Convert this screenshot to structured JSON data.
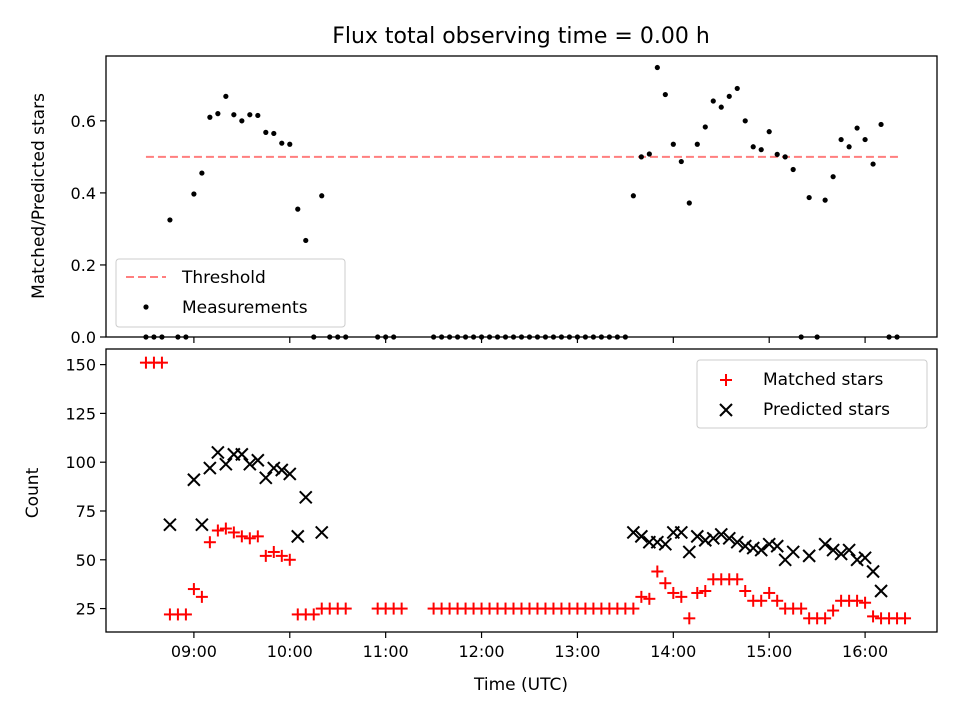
{
  "chart_data": [
    {
      "type": "scatter",
      "title": "Flux total observing time = 0.00 h",
      "xlabel": "",
      "ylabel": "Matched/Predicted stars",
      "xlim": [
        "08:05",
        "16:45"
      ],
      "ylim": [
        0,
        0.78
      ],
      "yticks": [
        0.0,
        0.2,
        0.4,
        0.6
      ],
      "ytick_labels": [
        "0.0",
        "0.2",
        "0.4",
        "0.6"
      ],
      "threshold": {
        "name": "Threshold",
        "y": 0.5,
        "x_start": "08:30",
        "x_end": "16:22",
        "color": "#ff7f7f",
        "style": "dashed"
      },
      "legend": {
        "position": "lower-left",
        "entries": [
          "Threshold",
          "Measurements"
        ]
      },
      "series": [
        {
          "name": "Measurements",
          "color": "#000000",
          "marker": "dot",
          "points": [
            [
              "08:30",
              0
            ],
            [
              "08:35",
              0
            ],
            [
              "08:40",
              0
            ],
            [
              "08:45",
              0.325
            ],
            [
              "08:50",
              0
            ],
            [
              "08:55",
              0
            ],
            [
              "09:00",
              0.397
            ],
            [
              "09:05",
              0.455
            ],
            [
              "09:10",
              0.61
            ],
            [
              "09:15",
              0.62
            ],
            [
              "09:20",
              0.668
            ],
            [
              "09:25",
              0.617
            ],
            [
              "09:30",
              0.6
            ],
            [
              "09:35",
              0.617
            ],
            [
              "09:40",
              0.615
            ],
            [
              "09:45",
              0.568
            ],
            [
              "09:50",
              0.565
            ],
            [
              "09:55",
              0.538
            ],
            [
              "10:00",
              0.535
            ],
            [
              "10:05",
              0.355
            ],
            [
              "10:10",
              0.268
            ],
            [
              "10:15",
              0
            ],
            [
              "10:20",
              0.392
            ],
            [
              "10:25",
              0
            ],
            [
              "10:30",
              0
            ],
            [
              "10:35",
              0
            ],
            [
              "10:55",
              0
            ],
            [
              "11:00",
              0
            ],
            [
              "11:05",
              0
            ],
            [
              "11:30",
              0
            ],
            [
              "11:35",
              0
            ],
            [
              "11:40",
              0
            ],
            [
              "11:45",
              0
            ],
            [
              "11:50",
              0
            ],
            [
              "11:55",
              0
            ],
            [
              "12:00",
              0
            ],
            [
              "12:05",
              0
            ],
            [
              "12:10",
              0
            ],
            [
              "12:15",
              0
            ],
            [
              "12:20",
              0
            ],
            [
              "12:25",
              0
            ],
            [
              "12:30",
              0
            ],
            [
              "12:35",
              0
            ],
            [
              "12:40",
              0
            ],
            [
              "12:45",
              0
            ],
            [
              "12:50",
              0
            ],
            [
              "12:55",
              0
            ],
            [
              "13:00",
              0
            ],
            [
              "13:05",
              0
            ],
            [
              "13:10",
              0
            ],
            [
              "13:15",
              0
            ],
            [
              "13:20",
              0
            ],
            [
              "13:25",
              0
            ],
            [
              "13:30",
              0
            ],
            [
              "13:35",
              0.392
            ],
            [
              "13:40",
              0.5
            ],
            [
              "13:45",
              0.508
            ],
            [
              "13:50",
              0.748
            ],
            [
              "13:55",
              0.673
            ],
            [
              "14:00",
              0.535
            ],
            [
              "14:05",
              0.487
            ],
            [
              "14:10",
              0.372
            ],
            [
              "14:15",
              0.535
            ],
            [
              "14:20",
              0.583
            ],
            [
              "14:25",
              0.655
            ],
            [
              "14:30",
              0.638
            ],
            [
              "14:35",
              0.668
            ],
            [
              "14:40",
              0.69
            ],
            [
              "14:45",
              0.6
            ],
            [
              "14:50",
              0.528
            ],
            [
              "14:55",
              0.52
            ],
            [
              "15:00",
              0.57
            ],
            [
              "15:05",
              0.507
            ],
            [
              "15:10",
              0.5
            ],
            [
              "15:15",
              0.465
            ],
            [
              "15:20",
              0
            ],
            [
              "15:25",
              0.387
            ],
            [
              "15:30",
              0
            ],
            [
              "15:35",
              0.38
            ],
            [
              "15:40",
              0.445
            ],
            [
              "15:45",
              0.548
            ],
            [
              "15:50",
              0.528
            ],
            [
              "15:55",
              0.58
            ],
            [
              "16:00",
              0.548
            ],
            [
              "16:05",
              0.48
            ],
            [
              "16:10",
              0.59
            ],
            [
              "16:15",
              0
            ],
            [
              "16:20",
              0
            ]
          ]
        }
      ]
    },
    {
      "type": "scatter",
      "title": "",
      "xlabel": "Time (UTC)",
      "ylabel": "Count",
      "xlim": [
        "08:05",
        "16:45"
      ],
      "ylim": [
        13,
        158
      ],
      "yticks": [
        25,
        50,
        75,
        100,
        125,
        150
      ],
      "ytick_labels": [
        "25",
        "50",
        "75",
        "100",
        "125",
        "150"
      ],
      "xticks": [
        "09:00",
        "10:00",
        "11:00",
        "12:00",
        "13:00",
        "14:00",
        "15:00",
        "16:00"
      ],
      "xtick_labels": [
        "09:00",
        "10:00",
        "11:00",
        "12:00",
        "13:00",
        "14:00",
        "15:00",
        "16:00"
      ],
      "legend": {
        "position": "top-right",
        "entries": [
          "Matched stars",
          "Predicted stars"
        ]
      },
      "series": [
        {
          "name": "Matched stars",
          "color": "#ff0000",
          "marker": "plus",
          "points": [
            [
              "08:30",
              151
            ],
            [
              "08:35",
              151
            ],
            [
              "08:40",
              151
            ],
            [
              "08:45",
              22
            ],
            [
              "08:50",
              22
            ],
            [
              "08:55",
              22
            ],
            [
              "09:00",
              35
            ],
            [
              "09:05",
              31
            ],
            [
              "09:10",
              59
            ],
            [
              "09:15",
              65
            ],
            [
              "09:20",
              66
            ],
            [
              "09:25",
              64
            ],
            [
              "09:30",
              62
            ],
            [
              "09:35",
              61
            ],
            [
              "09:40",
              62
            ],
            [
              "09:45",
              52
            ],
            [
              "09:50",
              54
            ],
            [
              "09:55",
              52
            ],
            [
              "10:00",
              50
            ],
            [
              "10:05",
              22
            ],
            [
              "10:10",
              22
            ],
            [
              "10:15",
              22
            ],
            [
              "10:20",
              25
            ],
            [
              "10:25",
              25
            ],
            [
              "10:30",
              25
            ],
            [
              "10:35",
              25
            ],
            [
              "10:55",
              25
            ],
            [
              "11:00",
              25
            ],
            [
              "11:05",
              25
            ],
            [
              "11:10",
              25
            ],
            [
              "11:30",
              25
            ],
            [
              "11:35",
              25
            ],
            [
              "11:40",
              25
            ],
            [
              "11:45",
              25
            ],
            [
              "11:50",
              25
            ],
            [
              "11:55",
              25
            ],
            [
              "12:00",
              25
            ],
            [
              "12:05",
              25
            ],
            [
              "12:10",
              25
            ],
            [
              "12:15",
              25
            ],
            [
              "12:20",
              25
            ],
            [
              "12:25",
              25
            ],
            [
              "12:30",
              25
            ],
            [
              "12:35",
              25
            ],
            [
              "12:40",
              25
            ],
            [
              "12:45",
              25
            ],
            [
              "12:50",
              25
            ],
            [
              "12:55",
              25
            ],
            [
              "13:00",
              25
            ],
            [
              "13:05",
              25
            ],
            [
              "13:10",
              25
            ],
            [
              "13:15",
              25
            ],
            [
              "13:20",
              25
            ],
            [
              "13:25",
              25
            ],
            [
              "13:30",
              25
            ],
            [
              "13:35",
              25
            ],
            [
              "13:40",
              31
            ],
            [
              "13:45",
              30
            ],
            [
              "13:50",
              44
            ],
            [
              "13:55",
              38
            ],
            [
              "14:00",
              33
            ],
            [
              "14:05",
              31
            ],
            [
              "14:10",
              20
            ],
            [
              "14:15",
              33
            ],
            [
              "14:20",
              34
            ],
            [
              "14:25",
              40
            ],
            [
              "14:30",
              40
            ],
            [
              "14:35",
              40
            ],
            [
              "14:40",
              40
            ],
            [
              "14:45",
              34
            ],
            [
              "14:50",
              29
            ],
            [
              "14:55",
              29
            ],
            [
              "15:00",
              33
            ],
            [
              "15:05",
              29
            ],
            [
              "15:10",
              25
            ],
            [
              "15:15",
              25
            ],
            [
              "15:20",
              25
            ],
            [
              "15:25",
              20
            ],
            [
              "15:30",
              20
            ],
            [
              "15:35",
              20
            ],
            [
              "15:40",
              24
            ],
            [
              "15:45",
              29
            ],
            [
              "15:50",
              29
            ],
            [
              "15:55",
              29
            ],
            [
              "16:00",
              28
            ],
            [
              "16:05",
              21
            ],
            [
              "16:10",
              20
            ],
            [
              "16:15",
              20
            ],
            [
              "16:20",
              20
            ],
            [
              "16:25",
              20
            ]
          ]
        },
        {
          "name": "Predicted stars",
          "color": "#000000",
          "marker": "x",
          "points": [
            [
              "08:45",
              68
            ],
            [
              "09:00",
              91
            ],
            [
              "09:05",
              68
            ],
            [
              "09:10",
              97
            ],
            [
              "09:15",
              105
            ],
            [
              "09:20",
              99
            ],
            [
              "09:25",
              104
            ],
            [
              "09:30",
              104
            ],
            [
              "09:35",
              99
            ],
            [
              "09:40",
              101
            ],
            [
              "09:45",
              92
            ],
            [
              "09:50",
              97
            ],
            [
              "09:55",
              96
            ],
            [
              "10:00",
              94
            ],
            [
              "10:05",
              62
            ],
            [
              "10:10",
              82
            ],
            [
              "10:20",
              64
            ],
            [
              "13:35",
              64
            ],
            [
              "13:40",
              62
            ],
            [
              "13:45",
              59
            ],
            [
              "13:50",
              59
            ],
            [
              "13:55",
              58
            ],
            [
              "14:00",
              64
            ],
            [
              "14:05",
              64
            ],
            [
              "14:10",
              54
            ],
            [
              "14:15",
              62
            ],
            [
              "14:20",
              60
            ],
            [
              "14:25",
              61
            ],
            [
              "14:30",
              63
            ],
            [
              "14:35",
              61
            ],
            [
              "14:40",
              59
            ],
            [
              "14:45",
              57
            ],
            [
              "14:50",
              56
            ],
            [
              "14:55",
              55
            ],
            [
              "15:00",
              58
            ],
            [
              "15:05",
              57
            ],
            [
              "15:10",
              50
            ],
            [
              "15:15",
              54
            ],
            [
              "15:25",
              52
            ],
            [
              "15:35",
              58
            ],
            [
              "15:40",
              55
            ],
            [
              "15:45",
              53
            ],
            [
              "15:50",
              55
            ],
            [
              "15:55",
              50
            ],
            [
              "16:00",
              51
            ],
            [
              "16:05",
              44
            ],
            [
              "16:10",
              34
            ]
          ]
        }
      ]
    }
  ]
}
